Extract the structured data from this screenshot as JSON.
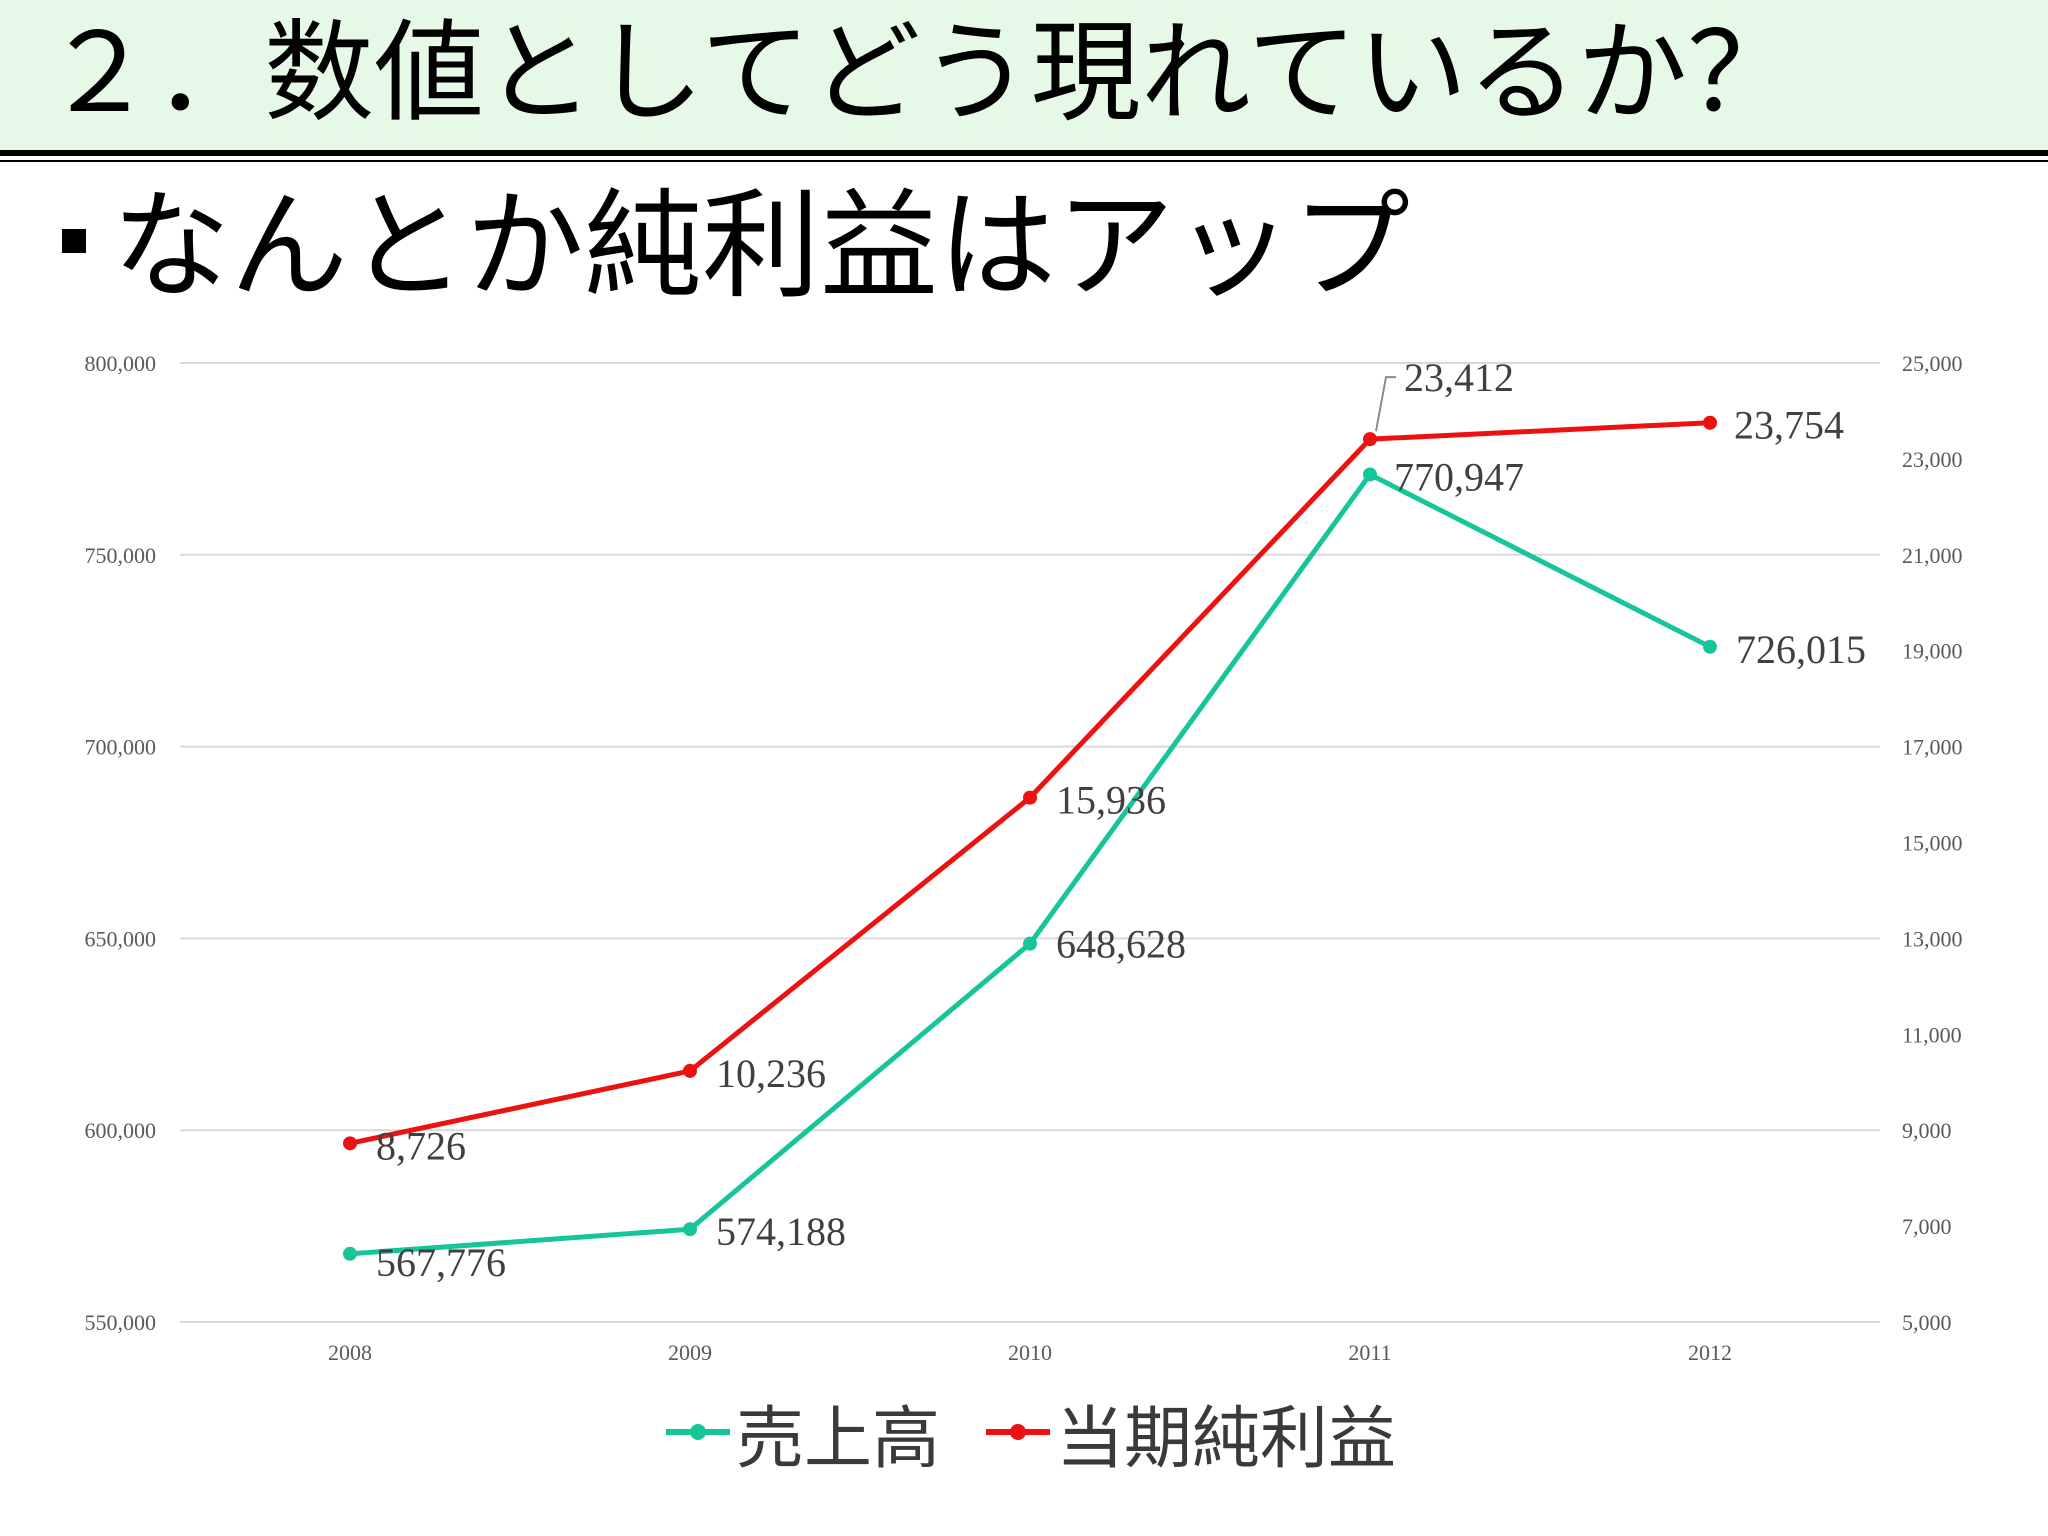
{
  "slide": {
    "title": "２．数値としてどう現れているか？",
    "bullet": "なんとか純利益はアップ"
  },
  "colors": {
    "header_bg": "#e6f8e6",
    "sales": "#17c59a",
    "profit": "#ee1111"
  },
  "chart_data": {
    "type": "line",
    "x": [
      "2008",
      "2009",
      "2010",
      "2011",
      "2012"
    ],
    "series": [
      {
        "name": "売上高",
        "axis": "left",
        "color": "#17c59a",
        "values": [
          567776,
          574188,
          648628,
          770947,
          726015
        ],
        "labels": [
          "567,776",
          "574,188",
          "648,628",
          "770,947",
          "726,015"
        ]
      },
      {
        "name": "当期純利益",
        "axis": "right",
        "color": "#ee1111",
        "values": [
          8726,
          10236,
          15936,
          23412,
          23754
        ],
        "labels": [
          "8,726",
          "10,236",
          "15,936",
          "23,412",
          "23,754"
        ]
      }
    ],
    "y_left": {
      "ylim": [
        550000,
        800000
      ],
      "ticks": [
        "550,000",
        "600,000",
        "650,000",
        "700,000",
        "750,000",
        "800,000"
      ]
    },
    "y_right": {
      "ylim": [
        5000,
        25000
      ],
      "ticks": [
        "5,000",
        "7,000",
        "9,000",
        "11,000",
        "13,000",
        "15,000",
        "17,000",
        "19,000",
        "21,000",
        "23,000",
        "25,000"
      ]
    },
    "grid": true,
    "legend": "bottom"
  }
}
